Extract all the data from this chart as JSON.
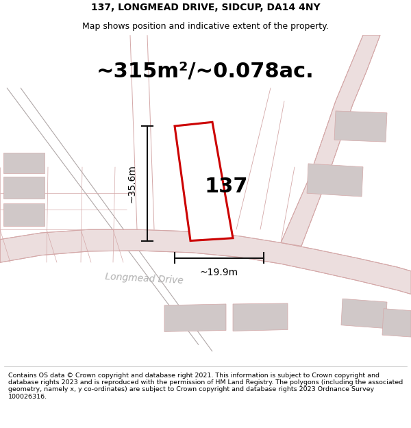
{
  "title_line1": "137, LONGMEAD DRIVE, SIDCUP, DA14 4NY",
  "title_line2": "Map shows position and indicative extent of the property.",
  "area_text": "~315m²/~0.078ac.",
  "label_137": "137",
  "dim_height": "~35.6m",
  "dim_width": "~19.9m",
  "street_label": "Longmead Drive",
  "footer_text": "Contains OS data © Crown copyright and database right 2021. This information is subject to Crown copyright and database rights 2023 and is reproduced with the permission of HM Land Registry. The polygons (including the associated geometry, namely x, y co-ordinates) are subject to Crown copyright and database rights 2023 Ordnance Survey 100026316.",
  "bg_color": "#ffffff",
  "map_bg": "#f5f0f0",
  "road_color": "#e8d0d0",
  "building_color": "#d0c8c8",
  "highlight_color": "#cc0000",
  "dim_line_color": "#111111",
  "road_line_color": "#d4a8a8",
  "road_fill_color": "#ecdede",
  "street_text_color": "#b0b0b0",
  "title_fontsize": 10,
  "subtitle_fontsize": 9,
  "area_fontsize": 22,
  "label_fontsize": 22,
  "dim_fontsize": 10,
  "street_fontsize": 10,
  "footer_fontsize": 6.8
}
